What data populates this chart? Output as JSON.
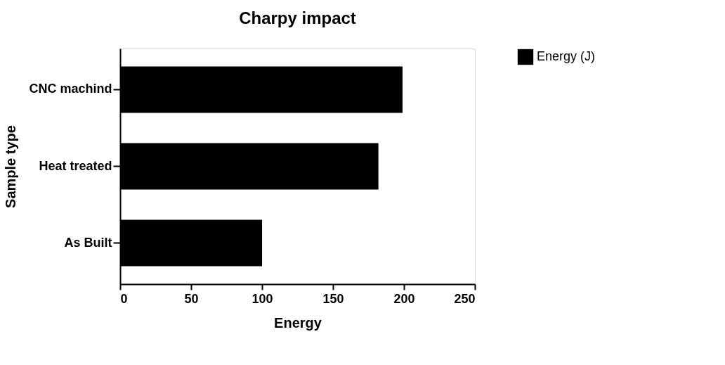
{
  "chart_data": {
    "type": "bar",
    "orientation": "horizontal",
    "title": "Charpy impact",
    "xlabel": "Energy",
    "ylabel": "Sample type",
    "categories": [
      "CNC machind",
      "Heat treated",
      "As Built"
    ],
    "series": [
      {
        "name": "Energy (J)",
        "color": "#000000",
        "values": [
          199,
          182,
          100
        ]
      }
    ],
    "xlim": [
      0,
      250
    ],
    "xticks": [
      0,
      50,
      100,
      150,
      200,
      250
    ],
    "grid": false,
    "legend": "top right"
  }
}
